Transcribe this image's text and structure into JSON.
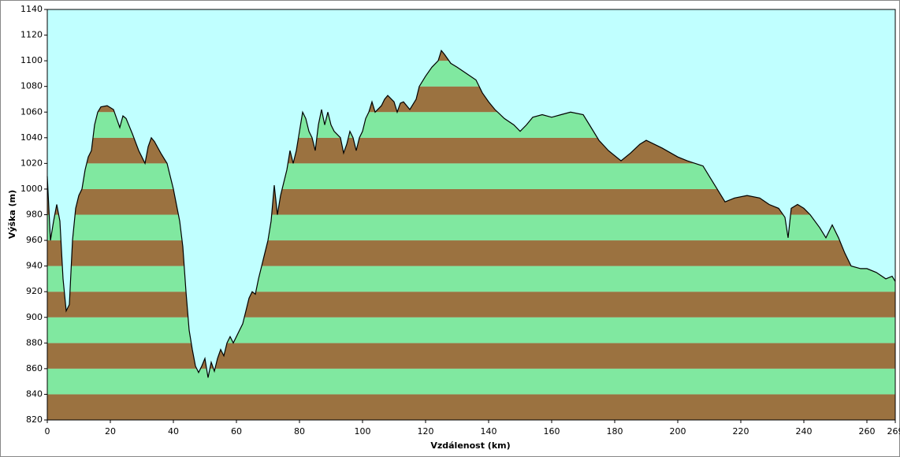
{
  "chart_data": {
    "type": "area",
    "xlabel": "Vzdálenost  (km)",
    "ylabel": "Výška (m)",
    "x": [
      0,
      1,
      2,
      3,
      4,
      5,
      6,
      7,
      8,
      9,
      10,
      11,
      12,
      13,
      14,
      15,
      16,
      17,
      19,
      21,
      22,
      23,
      24,
      25,
      27,
      29,
      30,
      31,
      32,
      33,
      34,
      36,
      38,
      39,
      40,
      42,
      43,
      44,
      45,
      46,
      47,
      48,
      49,
      50,
      51,
      52,
      53,
      54,
      55,
      56,
      57,
      58,
      59,
      60,
      61,
      62,
      63,
      64,
      65,
      66,
      67,
      68,
      69,
      70,
      71,
      72,
      73,
      74,
      75,
      76,
      77,
      78,
      79,
      80,
      81,
      82,
      83,
      84,
      85,
      86,
      87,
      88,
      89,
      90,
      91,
      93,
      94,
      95,
      96,
      97,
      98,
      99,
      100,
      101,
      102,
      103,
      104,
      106,
      107,
      108,
      110,
      111,
      112,
      113,
      115,
      117,
      118,
      120,
      122,
      124,
      125,
      126,
      128,
      130,
      133,
      136,
      138,
      140,
      142,
      145,
      148,
      150,
      152,
      154,
      157,
      160,
      163,
      166,
      170,
      172,
      175,
      178,
      182,
      185,
      188,
      190,
      195,
      200,
      203,
      208,
      210,
      212,
      215,
      218,
      222,
      226,
      229,
      232,
      234,
      235,
      236,
      238,
      240,
      242,
      245,
      247,
      249,
      251,
      253,
      255,
      258,
      260,
      263,
      266,
      268,
      269
    ],
    "y": [
      1010,
      960,
      975,
      988,
      975,
      930,
      905,
      910,
      960,
      985,
      995,
      1000,
      1015,
      1025,
      1030,
      1050,
      1060,
      1064,
      1065,
      1062,
      1055,
      1048,
      1057,
      1055,
      1043,
      1030,
      1025,
      1020,
      1033,
      1040,
      1037,
      1028,
      1020,
      1010,
      1000,
      975,
      955,
      920,
      890,
      875,
      862,
      857,
      862,
      868,
      853,
      865,
      858,
      868,
      875,
      870,
      880,
      885,
      880,
      885,
      890,
      895,
      905,
      915,
      920,
      918,
      930,
      940,
      950,
      960,
      975,
      1003,
      980,
      995,
      1005,
      1015,
      1030,
      1020,
      1030,
      1045,
      1060,
      1055,
      1045,
      1040,
      1030,
      1050,
      1062,
      1050,
      1060,
      1050,
      1045,
      1040,
      1028,
      1035,
      1045,
      1040,
      1030,
      1040,
      1045,
      1055,
      1060,
      1068,
      1060,
      1065,
      1070,
      1073,
      1068,
      1060,
      1067,
      1068,
      1062,
      1070,
      1080,
      1088,
      1095,
      1100,
      1108,
      1105,
      1098,
      1095,
      1090,
      1085,
      1075,
      1068,
      1062,
      1055,
      1050,
      1045,
      1050,
      1056,
      1058,
      1056,
      1058,
      1060,
      1058,
      1050,
      1038,
      1030,
      1022,
      1028,
      1035,
      1038,
      1032,
      1025,
      1022,
      1018,
      1010,
      1002,
      990,
      993,
      995,
      993,
      988,
      985,
      978,
      962,
      985,
      988,
      985,
      980,
      970,
      962,
      972,
      962,
      950,
      940,
      938,
      938,
      935,
      930,
      932,
      928
    ],
    "xlim": [
      0,
      269
    ],
    "ylim": [
      820,
      1140
    ],
    "xticks": [
      0,
      20,
      40,
      60,
      80,
      100,
      120,
      140,
      160,
      180,
      200,
      220,
      240,
      260,
      269
    ],
    "yticks": [
      820,
      840,
      860,
      880,
      900,
      920,
      940,
      960,
      980,
      1000,
      1020,
      1040,
      1060,
      1080,
      1100,
      1120,
      1140
    ],
    "band_colors": [
      "#9b7240",
      "#80e8a0"
    ],
    "sky_color": "#c0ffff",
    "line_color": "#000000"
  }
}
